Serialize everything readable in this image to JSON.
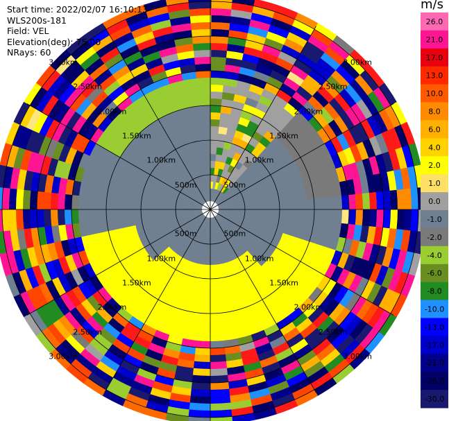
{
  "info": {
    "lines": [
      "Start time: 2022/02/07 16:10:13",
      "WLS200s-181",
      "Field: VEL",
      "Elevation(deg): 75.00",
      "NRays: 60"
    ]
  },
  "colorbar": {
    "title": "m/s",
    "ticks": [
      "26.0",
      "21.0",
      "17.0",
      "13.0",
      "10.0",
      "8.0",
      "6.0",
      "4.0",
      "2.0",
      "1.0",
      "0.0",
      "-1.0",
      "-2.0",
      "-4.0",
      "-6.0",
      "-8.0",
      "-10.0",
      "-13.0",
      "-17.0",
      "-21.0",
      "-26.0",
      "-30.0"
    ],
    "colors": [
      "#ff69b4",
      "#ff1493",
      "#e8000e",
      "#ff2a00",
      "#ff5a00",
      "#ff8c00",
      "#ffb000",
      "#ffd200",
      "#ffff00",
      "#ffe066",
      "#a0a0a0",
      "#6e7f90",
      "#7a7a7a",
      "#9acd32",
      "#6b8e23",
      "#228b22",
      "#1e90ff",
      "#0000ff",
      "#0000cd",
      "#00008b",
      "#000066",
      "#191970"
    ]
  },
  "range_labels": [
    "500m",
    "1.00km",
    "1.50km",
    "2.00km",
    "2.50km",
    "3.00km"
  ],
  "chart_data": {
    "type": "ppi",
    "field": "VEL",
    "units": "m/s",
    "elevation_deg": 75.0,
    "n_rays": 60,
    "range_rings_m": [
      500,
      1000,
      1500,
      2000,
      2500,
      3000
    ],
    "max_range_m": 3050,
    "vmin": -30.0,
    "vmax": 26.0,
    "inner_field_m": 1900,
    "inner_field": {
      "rays_az_deg": "0-360 step 6",
      "northwest_sector_az": [
        300,
        360
      ],
      "northwest_sector_value_ms": -4.0,
      "north_sector_az": [
        0,
        40
      ],
      "north_sector_value_ms": 0.5,
      "northeast_sector_az": [
        40,
        80
      ],
      "northeast_sector_value_ms": -2.0,
      "east_west_core_value_ms": -1.0,
      "south_sector_az": [
        105,
        255
      ],
      "south_sector_value_ms": 3.5
    },
    "outer_noise_m": [
      2000,
      3050
    ]
  }
}
